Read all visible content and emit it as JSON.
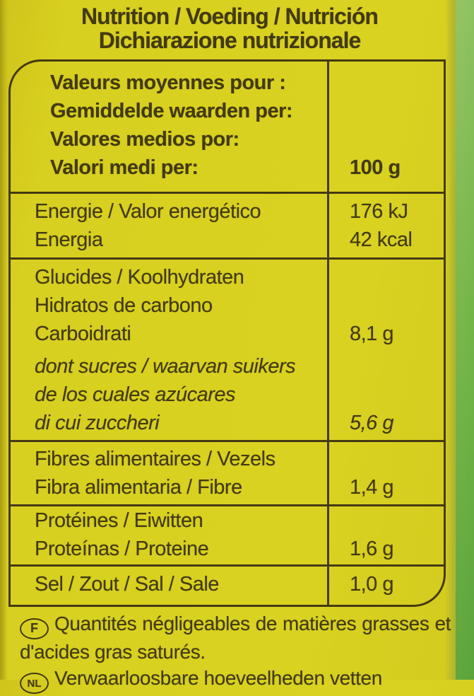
{
  "header": {
    "line1": "Nutrition / Voeding / Nutrición",
    "line2": "Dichiarazione nutrizionale"
  },
  "table": {
    "rows": [
      {
        "name": "per-quantity-header",
        "lines": [
          {
            "label": "Valeurs moyennes pour :"
          },
          {
            "label": "Gemiddelde waarden per:"
          },
          {
            "label": "Valores medios por:"
          },
          {
            "label": "Valori medi per:",
            "value": "100 g"
          }
        ]
      },
      {
        "name": "energy",
        "lines": [
          {
            "label": "Energie / Valor energético",
            "value": "176 kJ"
          },
          {
            "label": "Energia",
            "value": "42 kcal"
          }
        ]
      },
      {
        "name": "carbohydrates",
        "lines": [
          {
            "label": "Glucides / Koolhydraten"
          },
          {
            "label": "Hidratos de carbono"
          },
          {
            "label": "Carboidrati",
            "value": "8,1 g"
          },
          {
            "label": "dont sucres / waarvan suikers",
            "italic": true
          },
          {
            "label": "de los cuales azúcares",
            "italic": true
          },
          {
            "label": "di cui zuccheri",
            "value": "5,6 g",
            "italic": true
          }
        ]
      },
      {
        "name": "fiber",
        "lines": [
          {
            "label": "Fibres alimentaires / Vezels"
          },
          {
            "label": "Fibra alimentaria / Fibre",
            "value": "1,4 g"
          }
        ]
      },
      {
        "name": "protein",
        "lines": [
          {
            "label": "Protéines / Eiwitten"
          },
          {
            "label": "Proteínas / Proteine",
            "value": "1,6 g"
          }
        ]
      },
      {
        "name": "salt",
        "lines": [
          {
            "label": "Sel / Zout / Sal / Sale",
            "value": "1,0 g"
          }
        ]
      }
    ]
  },
  "notes": [
    {
      "badge": "F",
      "text": "Quantités négligeables de matières grasses et d'acides gras saturés."
    },
    {
      "badge": "NL",
      "text": "Verwaarloosbare hoeveelheden vetten"
    }
  ],
  "colors": {
    "label_yellow": "#d8d020",
    "text_dark": "#423a12",
    "border_dark": "#433a14",
    "package_green": "#74b446",
    "edge_olive": "#b3b52f"
  }
}
